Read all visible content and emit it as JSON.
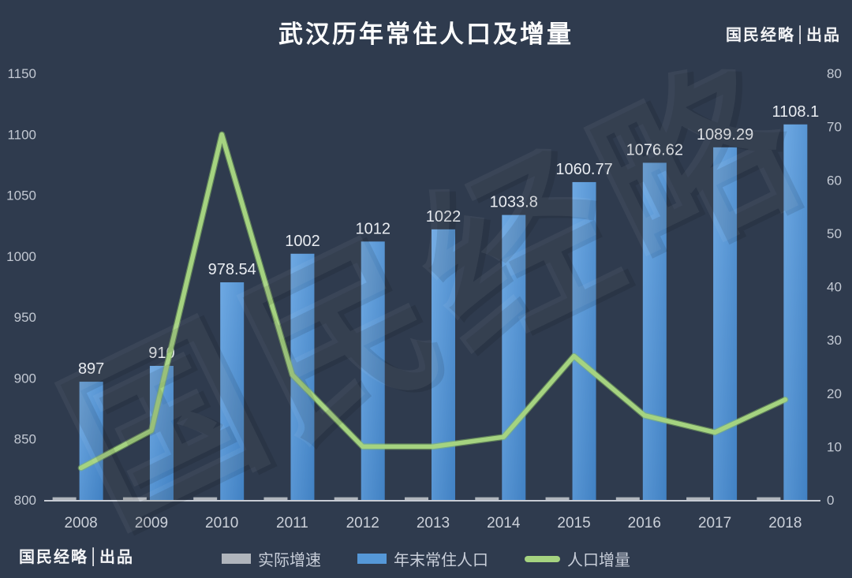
{
  "title": "武汉历年常住人口及增量",
  "brand_top_right": "国民经略│出品",
  "brand_bottom_left": "国民经略│出品",
  "watermark": "国民经略",
  "colors": {
    "background": "#2f3b4e",
    "bar_blue_top": "#6ea9e3",
    "bar_blue_bottom": "#4181c3",
    "bar_gray": "#b0b5bc",
    "line_green": "#a5d380",
    "line_green_edge": "#86b964",
    "axis_line": "#c6cbd3",
    "tick_text": "#c2c8d2",
    "xlabel_text": "#ccd1da",
    "value_label_text": "#e9ecf1",
    "title_text": "#ffffff"
  },
  "chart_data": {
    "type": "combo: bar + line",
    "title": "武汉历年常住人口及增量",
    "grid": false,
    "legend_position": "bottom",
    "categories": [
      "2008",
      "2009",
      "2010",
      "2011",
      "2012",
      "2013",
      "2014",
      "2015",
      "2016",
      "2017",
      "2018"
    ],
    "series": [
      {
        "name": "实际增速",
        "type": "bar",
        "axis": "right",
        "color": "#b0b5bc",
        "note": "bars nearly zero height at baseline",
        "values": [
          0.5,
          0.5,
          0.5,
          0.5,
          0.5,
          0.5,
          0.5,
          0.5,
          0.5,
          0.5,
          0.5
        ]
      },
      {
        "name": "年末常住人口",
        "type": "bar",
        "axis": "left",
        "color": "#5598d8",
        "values": [
          897,
          910,
          978.54,
          1002,
          1012,
          1022,
          1033.8,
          1060.77,
          1076.62,
          1089.29,
          1108.1
        ],
        "show_value_labels": true
      },
      {
        "name": "人口增量",
        "type": "line",
        "axis": "right",
        "color": "#a5d380",
        "values": [
          6,
          13,
          68.54,
          23.46,
          10,
          10,
          11.8,
          26.97,
          15.85,
          12.67,
          18.81
        ]
      }
    ],
    "left_axis": {
      "min": 800,
      "max": 1150,
      "step": 50,
      "ticks": [
        1150,
        1100,
        1050,
        1000,
        950,
        900,
        850,
        800
      ]
    },
    "right_axis": {
      "min": 0,
      "max": 80,
      "step": 10,
      "ticks": [
        80,
        70,
        60,
        50,
        40,
        30,
        20,
        10,
        0
      ]
    }
  },
  "legend": {
    "items": [
      {
        "label": "实际增速",
        "swatch": "rect",
        "color": "#b0b5bc"
      },
      {
        "label": "年末常住人口",
        "swatch": "rect",
        "color": "#5598d8"
      },
      {
        "label": "人口增量",
        "swatch": "pill",
        "color": "#a5d380"
      }
    ]
  }
}
